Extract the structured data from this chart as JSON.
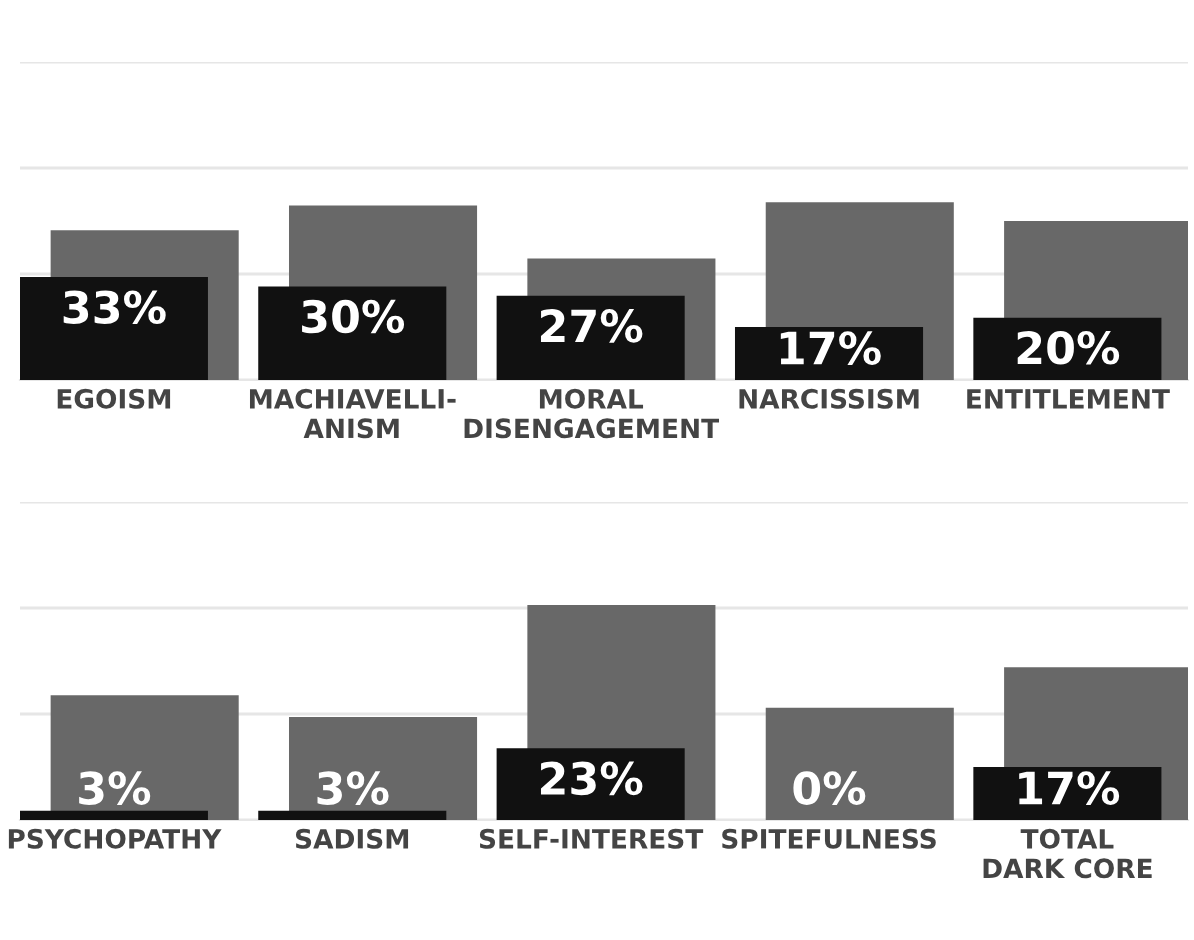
{
  "chart_data": [
    {
      "type": "bar",
      "categories": [
        "EGOISM",
        "MACHIAVELLI-\nANISM",
        "MORAL\nDISENGAGEMENT",
        "NARCISSISM",
        "ENTITLEMENT"
      ],
      "series": [
        {
          "color": "#686868",
          "values": [
            48,
            56,
            39,
            57,
            51
          ]
        },
        {
          "color": "#111111",
          "values": [
            33,
            30,
            27,
            17,
            20
          ],
          "value_labels": [
            "33%",
            "30%",
            "27%",
            "17%",
            "20%"
          ]
        }
      ],
      "ylim": [
        0,
        102
      ],
      "yticks": [
        {
          "value": 0,
          "label": null
        },
        {
          "value": 34,
          "label": null
        },
        {
          "value": 68,
          "label": null
        },
        {
          "value": 102,
          "label": null
        }
      ],
      "grid": "y",
      "tick_labels": "x"
    },
    {
      "type": "bar",
      "categories": [
        "PSYCHOPATHY",
        "SADISM",
        "SELF-INTEREST",
        "SPITEFULNESS",
        "TOTAL\nDARK CORE"
      ],
      "series": [
        {
          "color": "#686868",
          "values": [
            40,
            33,
            69,
            36,
            49
          ]
        },
        {
          "color": "#111111",
          "values": [
            3,
            3,
            23,
            0,
            17
          ],
          "value_labels": [
            "3%",
            "3%",
            "23%",
            "0%",
            "17%"
          ]
        }
      ],
      "ylim": [
        0,
        102
      ],
      "yticks": [
        {
          "value": 0,
          "label": null
        },
        {
          "value": 34,
          "label": null
        },
        {
          "value": 68,
          "label": null
        },
        {
          "value": 102,
          "label": null
        }
      ],
      "grid": "y",
      "tick_labels": "x"
    }
  ]
}
